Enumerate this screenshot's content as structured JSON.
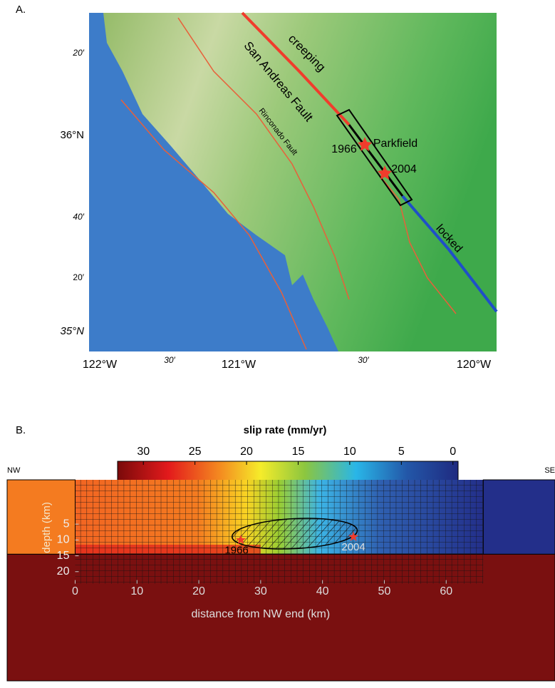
{
  "panel_a": {
    "label": "A.",
    "lat_labels": [
      "20′",
      "36°N",
      "40′",
      "20′",
      "35°N"
    ],
    "lon_labels": [
      "122°W",
      "30′",
      "121°W",
      "30′",
      "120°W"
    ],
    "annotations": {
      "creeping": "creeping",
      "san_andreas": "San Andreas Fault",
      "rinconado": "Rinconado Fault",
      "locked": "locked",
      "parkfield": "Parkfield",
      "event_1966": "1966",
      "event_2004": "2004"
    }
  },
  "panel_b": {
    "label": "B.",
    "colorbar": {
      "title": "slip rate (mm/yr)",
      "ticks": [
        30,
        25,
        20,
        15,
        10,
        5,
        0
      ],
      "lim": [
        32.5,
        -0.5
      ]
    },
    "left_end": "NW",
    "right_end": "SE",
    "xlabel": "distance from NW end (km)",
    "ylabel": "depth (km)",
    "xlim": [
      -11,
      77.6
    ],
    "xticks": [
      0,
      10,
      20,
      30,
      40,
      50,
      60
    ],
    "ylim": [
      -9,
      54.5
    ],
    "yticks": [
      5,
      10,
      15,
      20
    ],
    "events": [
      {
        "label": "1966",
        "distance": 26.8,
        "depth": 10
      },
      {
        "label": "2004",
        "distance": 45,
        "depth": 9
      }
    ]
  }
}
